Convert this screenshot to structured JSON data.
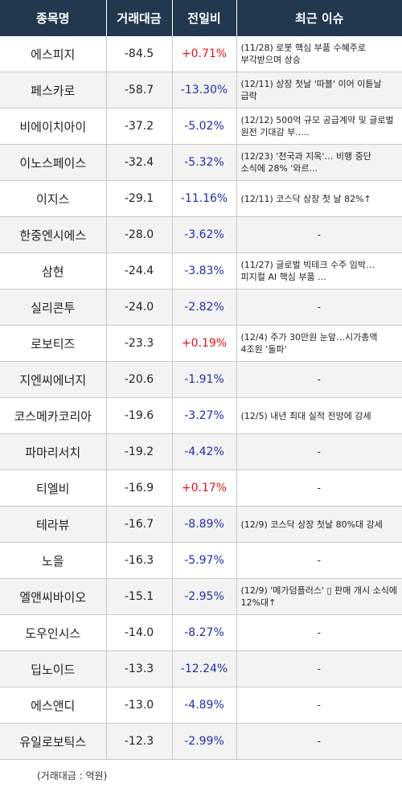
{
  "header": {
    "name": "종목명",
    "amount": "거래대금",
    "change": "전일비",
    "issue": "최근 이슈"
  },
  "rows": [
    {
      "name": "에스피지",
      "amount": "-84.5",
      "change": "+0.71%",
      "direction": "up",
      "issue": "(11/28) 로봇 핵심 부품 수혜주로 부각받으며 상승"
    },
    {
      "name": "페스카로",
      "amount": "-58.7",
      "change": "-13.30%",
      "direction": "down",
      "issue": "(12/11) 상장 첫날 '따블' 이어 이튿날 급락"
    },
    {
      "name": "비에이치아이",
      "amount": "-37.2",
      "change": "-5.02%",
      "direction": "down",
      "issue": "(12/12) 500억 규모 공급계약 및 글로벌 원전 기대감 부....."
    },
    {
      "name": "이노스페이스",
      "amount": "-32.4",
      "change": "-5.32%",
      "direction": "down",
      "issue": "(12/23) '천국과 지옥'… 비행 중단 소식에 28% '와르..."
    },
    {
      "name": "이지스",
      "amount": "-29.1",
      "change": "-11.16%",
      "direction": "down",
      "issue": "(12/11) 코스닥 상장 첫 날 82%↑"
    },
    {
      "name": "한중엔시에스",
      "amount": "-28.0",
      "change": "-3.62%",
      "direction": "down",
      "issue": "-"
    },
    {
      "name": "삼현",
      "amount": "-24.4",
      "change": "-3.83%",
      "direction": "down",
      "issue": "(11/27) 글로벌 빅테크 수주 임박…피지컬 AI 핵심 부품 ..."
    },
    {
      "name": "실리콘투",
      "amount": "-24.0",
      "change": "-2.82%",
      "direction": "down",
      "issue": "-"
    },
    {
      "name": "로보티즈",
      "amount": "-23.3",
      "change": "+0.19%",
      "direction": "up",
      "issue": "(12/4) 주가 30만원 눈앞…시가총액 4조원 '돌파'"
    },
    {
      "name": "지엔씨에너지",
      "amount": "-20.6",
      "change": "-1.91%",
      "direction": "down",
      "issue": "-"
    },
    {
      "name": "코스메카코리아",
      "amount": "-19.6",
      "change": "-3.27%",
      "direction": "down",
      "issue": "(12/5) 내년 최대 실적 전망에 강세"
    },
    {
      "name": "파마리서치",
      "amount": "-19.2",
      "change": "-4.42%",
      "direction": "down",
      "issue": "-"
    },
    {
      "name": "티엘비",
      "amount": "-16.9",
      "change": "+0.17%",
      "direction": "up",
      "issue": "-"
    },
    {
      "name": "테라뷰",
      "amount": "-16.7",
      "change": "-8.89%",
      "direction": "down",
      "issue": "(12/9) 코스닥 상장 첫날 80%대 강세"
    },
    {
      "name": "노을",
      "amount": "-16.3",
      "change": "-5.97%",
      "direction": "down",
      "issue": "-"
    },
    {
      "name": "엘앤씨바이오",
      "amount": "-15.1",
      "change": "-2.95%",
      "direction": "down",
      "issue": "(12/9) '메가덤플러스' ▯ 판매 개시 소식에 12%대↑"
    },
    {
      "name": "도우인시스",
      "amount": "-14.0",
      "change": "-8.27%",
      "direction": "down",
      "issue": "-"
    },
    {
      "name": "딥노이드",
      "amount": "-13.3",
      "change": "-12.24%",
      "direction": "down",
      "issue": "-"
    },
    {
      "name": "에스앤디",
      "amount": "-13.0",
      "change": "-4.89%",
      "direction": "down",
      "issue": "-"
    },
    {
      "name": "유일로보틱스",
      "amount": "-12.3",
      "change": "-2.99%",
      "direction": "down",
      "issue": "-"
    }
  ],
  "footnote": "(거래대금 : 억원)",
  "colors": {
    "header_bg": "#21384f",
    "up": "#e5141a",
    "down": "#1f2fa8",
    "stripe": "#f3f3f3"
  }
}
